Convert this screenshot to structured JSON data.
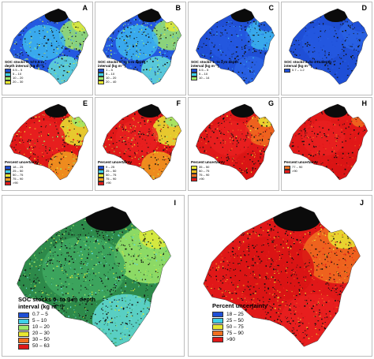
{
  "panels_small": [
    {
      "letter": "A",
      "title": "SOC stocks 0- to 0.5-m depth interval (kg m⁻²)",
      "legend": [
        {
          "label": "0.5 – 5",
          "color": "#1f4fd6"
        },
        {
          "label": "5 – 10",
          "color": "#3fd0e6"
        },
        {
          "label": "10 – 20",
          "color": "#9ee86a"
        },
        {
          "label": "20 – 30",
          "color": "#e8e832"
        }
      ],
      "palette": [
        "#2458e0",
        "#3db7ee",
        "#62dbd8",
        "#9ee86a",
        "#e0ea3a"
      ]
    },
    {
      "letter": "B",
      "title": "SOC stocks 0- to 1-m depth interval (kg m⁻²)",
      "legend": [
        {
          "label": "1 – 5",
          "color": "#1f4fd6"
        },
        {
          "label": "5 – 10",
          "color": "#3fd0e6"
        },
        {
          "label": "10 – 20",
          "color": "#9ee86a"
        },
        {
          "label": "20 – 40",
          "color": "#e8e832"
        }
      ],
      "palette": [
        "#2458e0",
        "#3db7ee",
        "#62dbd8",
        "#9ee86a",
        "#e0ea3a"
      ]
    },
    {
      "letter": "C",
      "title": "SOC stocks 1- to 2-m depth interval (kg m⁻²)",
      "legend": [
        {
          "label": "0.5 – 5",
          "color": "#1f4fd6"
        },
        {
          "label": "5 – 10",
          "color": "#3fd0e6"
        },
        {
          "label": "10 – 14",
          "color": "#9ee86a"
        }
      ],
      "palette": [
        "#1f4fd6",
        "#2458e0",
        "#2a63e4",
        "#3db7ee",
        "#1f4fd6"
      ]
    },
    {
      "letter": "D",
      "title": "SOC stocks 2- to 3-m depth interval (kg m⁻²)",
      "legend": [
        {
          "label": "0.7 – 1.2",
          "color": "#1f4fd6"
        }
      ],
      "palette": [
        "#1f4fd6",
        "#2458e0",
        "#1f4fd6",
        "#2a63e4",
        "#1f4fd6"
      ]
    },
    {
      "letter": "E",
      "title": "Percent uncertainty",
      "legend": [
        {
          "label": "18 – 25",
          "color": "#1f4fd6"
        },
        {
          "label": "25 – 50",
          "color": "#3fd0e6"
        },
        {
          "label": "50 – 75",
          "color": "#e8e832"
        },
        {
          "label": "75 – 90",
          "color": "#f0a020"
        },
        {
          "label": ">90",
          "color": "#e01818"
        }
      ],
      "palette": [
        "#e01818",
        "#e82020",
        "#f0a020",
        "#e8e832",
        "#9ee86a"
      ]
    },
    {
      "letter": "F",
      "title": "Percent uncertainty",
      "legend": [
        {
          "label": "9 – 25",
          "color": "#1f4fd6"
        },
        {
          "label": "25 – 50",
          "color": "#3fd0e6"
        },
        {
          "label": "50 – 75",
          "color": "#e8e832"
        },
        {
          "label": "75 – 90",
          "color": "#f0a020"
        },
        {
          "label": ">90",
          "color": "#e01818"
        }
      ],
      "palette": [
        "#e01818",
        "#e82020",
        "#f0a020",
        "#e8e832",
        "#9ee86a"
      ]
    },
    {
      "letter": "G",
      "title": "Percent uncertainty",
      "legend": [
        {
          "label": "35 – 50",
          "color": "#e8e832"
        },
        {
          "label": "50 – 75",
          "color": "#f0c020"
        },
        {
          "label": "75 – 90",
          "color": "#f07020"
        },
        {
          "label": ">90",
          "color": "#e01818"
        }
      ],
      "palette": [
        "#e01818",
        "#e82020",
        "#d81414",
        "#f07020",
        "#e8e832"
      ]
    },
    {
      "letter": "H",
      "title": "Percent uncertainty",
      "legend": [
        {
          "label": "77 – 90",
          "color": "#f07020"
        },
        {
          "label": ">90",
          "color": "#e01818"
        }
      ],
      "palette": [
        "#e01818",
        "#e82020",
        "#d81414",
        "#e01818",
        "#f07020"
      ]
    }
  ],
  "panel_I": {
    "letter": "I",
    "title": "SOC stocks 0- to 3-m depth interval (kg m⁻²)",
    "legend": [
      {
        "label": "0.7 – 5",
        "color": "#1f4fd6"
      },
      {
        "label": "5 – 10",
        "color": "#3fd0e6"
      },
      {
        "label": "10 – 20",
        "color": "#9ee86a"
      },
      {
        "label": "20 – 30",
        "color": "#e8e832"
      },
      {
        "label": "30 – 50",
        "color": "#f07020"
      },
      {
        "label": "50 – 63",
        "color": "#e01818"
      }
    ],
    "palette": [
      "#2d8a4a",
      "#3fa860",
      "#62dbd8",
      "#9ee86a",
      "#e0ea3a"
    ]
  },
  "panel_J": {
    "letter": "J",
    "title": "Percent uncertainty",
    "legend": [
      {
        "label": "18 – 25",
        "color": "#1f4fd6"
      },
      {
        "label": "25 – 50",
        "color": "#3fd0e6"
      },
      {
        "label": "50 – 75",
        "color": "#e8e832"
      },
      {
        "label": "75 – 90",
        "color": "#f07020"
      },
      {
        "label": ">90",
        "color": "#e01818"
      }
    ],
    "palette": [
      "#e01818",
      "#d81414",
      "#e82020",
      "#f07020",
      "#e8e832"
    ]
  }
}
